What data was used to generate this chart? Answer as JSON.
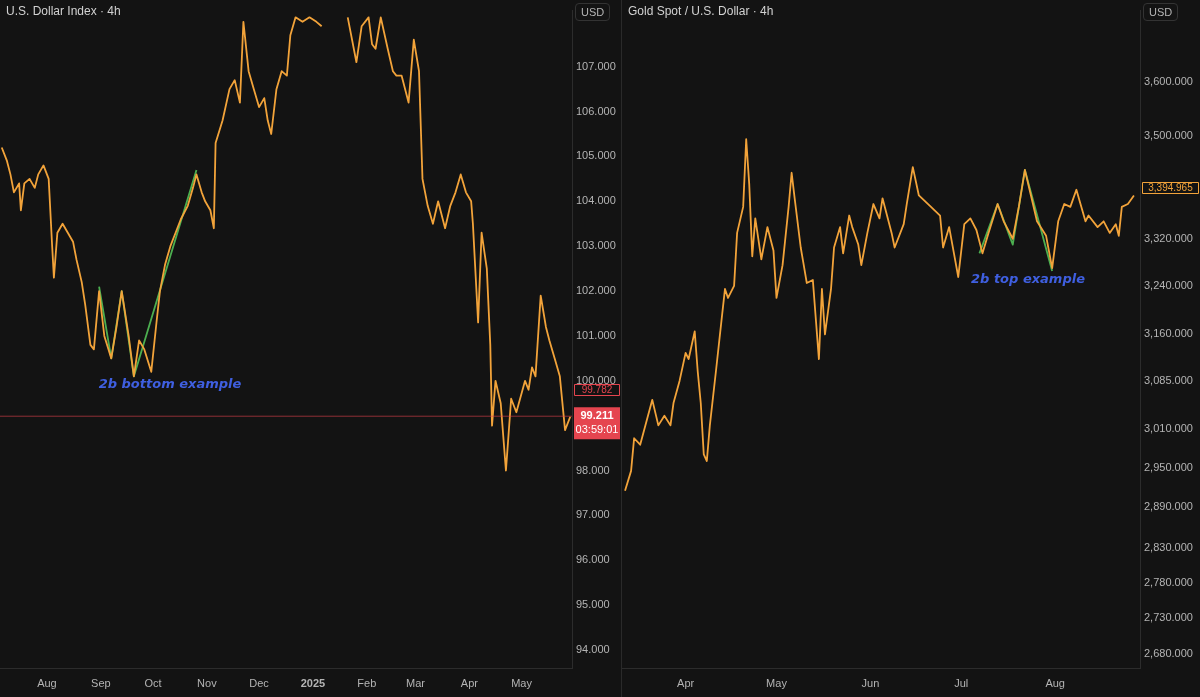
{
  "chart_data": [
    {
      "type": "line",
      "title": "U.S. Dollar Index · 4h",
      "ylabel": "USD",
      "marker": "none",
      "xlim": [
        "2024-07-05",
        "2025-05-30"
      ],
      "xticks": [
        {
          "value": "2024-08",
          "label": "Aug"
        },
        {
          "value": "2024-09",
          "label": "Sep"
        },
        {
          "value": "2024-10",
          "label": "Oct"
        },
        {
          "value": "2024-11",
          "label": "Nov"
        },
        {
          "value": "2024-12",
          "label": "Dec"
        },
        {
          "value": "2025-01",
          "label": "2025"
        },
        {
          "value": "2025-02",
          "label": "Feb"
        },
        {
          "value": "2025-03",
          "label": "Mar"
        },
        {
          "value": "2025-04",
          "label": "Apr"
        },
        {
          "value": "2025-05",
          "label": "May"
        }
      ],
      "ylim": [
        93.6,
        108.25
      ],
      "yticks": [
        {
          "value": 94,
          "label": "94.000"
        },
        {
          "value": 95,
          "label": "95.000"
        },
        {
          "value": 96,
          "label": "96.000"
        },
        {
          "value": 97,
          "label": "97.000"
        },
        {
          "value": 98,
          "label": "98.000"
        },
        {
          "value": 100,
          "label": "100.000"
        },
        {
          "value": 101,
          "label": "101.000"
        },
        {
          "value": 102,
          "label": "102.000"
        },
        {
          "value": 103,
          "label": "103.000"
        },
        {
          "value": 104,
          "label": "104.000"
        },
        {
          "value": 105,
          "label": "105.000"
        },
        {
          "value": 106,
          "label": "106.000"
        },
        {
          "value": 107,
          "label": "107.000"
        }
      ],
      "series": [
        {
          "color": "#f2a33a",
          "x": [
            "2024-07-06",
            "2024-07-09",
            "2024-07-11",
            "2024-07-13",
            "2024-07-16",
            "2024-07-17",
            "2024-07-19",
            "2024-07-22",
            "2024-07-25",
            "2024-07-27",
            "2024-07-30",
            "2024-08-02",
            "2024-08-04",
            "2024-08-05",
            "2024-08-07",
            "2024-08-10",
            "2024-08-13",
            "2024-08-16",
            "2024-08-18",
            "2024-08-21",
            "2024-08-23",
            "2024-08-26",
            "2024-08-28",
            "2024-08-31",
            "2024-09-03",
            "2024-09-07",
            "2024-09-10",
            "2024-09-13",
            "2024-09-17",
            "2024-09-20",
            "2024-09-23",
            "2024-09-26",
            "2024-09-30",
            "2024-10-03",
            "2024-10-05",
            "2024-10-08",
            "2024-10-11",
            "2024-10-14",
            "2024-10-17",
            "2024-10-21",
            "2024-10-24",
            "2024-10-26",
            "2024-10-29",
            "2024-10-31",
            "2024-11-03",
            "2024-11-05",
            "2024-11-06",
            "2024-11-10",
            "2024-11-14",
            "2024-11-17",
            "2024-11-20",
            "2024-11-22",
            "2024-11-25",
            "2024-11-28",
            "2024-12-01",
            "2024-12-04",
            "2024-12-06",
            "2024-12-08",
            "2024-12-11",
            "2024-12-14",
            "2024-12-17",
            "2024-12-19",
            "2024-12-22",
            "2024-12-26",
            "2024-12-30",
            "2025-01-03",
            "2025-01-06",
            "2025-01-13",
            "2025-01-21",
            "2025-01-26",
            "2025-01-29",
            "2025-02-02",
            "2025-02-04",
            "2025-02-06",
            "2025-02-09",
            "2025-02-13",
            "2025-02-16",
            "2025-02-18",
            "2025-02-21",
            "2025-02-25",
            "2025-02-28",
            "2025-03-03",
            "2025-03-05",
            "2025-03-08",
            "2025-03-11",
            "2025-03-14",
            "2025-03-18",
            "2025-03-21",
            "2025-03-24",
            "2025-03-27",
            "2025-03-30",
            "2025-04-02",
            "2025-04-03",
            "2025-04-06",
            "2025-04-08",
            "2025-04-11",
            "2025-04-13",
            "2025-04-14",
            "2025-04-16",
            "2025-04-19",
            "2025-04-22",
            "2025-04-25",
            "2025-04-28",
            "2025-05-03",
            "2025-05-05",
            "2025-05-07",
            "2025-05-09",
            "2025-05-12",
            "2025-05-15",
            "2025-05-17",
            "2025-05-20",
            "2025-05-23",
            "2025-05-26",
            "2025-05-29"
          ],
          "values": [
            105.2,
            104.9,
            104.6,
            104.2,
            104.4,
            103.8,
            104.4,
            104.5,
            104.3,
            104.6,
            104.8,
            104.5,
            103.0,
            102.3,
            103.3,
            103.5,
            103.3,
            103.1,
            102.7,
            102.2,
            101.7,
            100.8,
            100.7,
            102.0,
            101.0,
            100.5,
            101.2,
            102.0,
            101.0,
            100.1,
            100.9,
            100.7,
            100.2,
            101.3,
            102.0,
            102.6,
            103.0,
            103.3,
            103.6,
            103.9,
            104.3,
            104.6,
            104.2,
            104.0,
            103.8,
            103.4,
            105.3,
            105.8,
            106.5,
            106.7,
            106.2,
            108.0,
            106.9,
            106.5,
            106.1,
            106.3,
            105.8,
            105.5,
            106.5,
            106.9,
            106.8,
            107.7,
            108.1,
            108.0,
            108.1,
            108.0,
            107.9,
            null,
            108.1,
            107.1,
            107.9,
            108.1,
            107.5,
            107.4,
            108.1,
            107.4,
            106.9,
            106.8,
            106.8,
            106.2,
            107.6,
            106.9,
            104.5,
            103.9,
            103.5,
            104.0,
            103.4,
            103.9,
            104.2,
            104.6,
            104.2,
            104.0,
            103.5,
            101.3,
            103.3,
            102.5,
            100.8,
            99.0,
            100.0,
            99.5,
            98.0,
            99.6,
            99.3,
            100.0,
            99.8,
            100.3,
            100.1,
            101.9,
            101.2,
            100.9,
            100.5,
            100.1,
            98.9,
            99.2
          ]
        },
        {
          "color": "#4caf50",
          "x": [
            "2024-08-31",
            "2024-09-07",
            "2024-09-13",
            "2024-09-20",
            "2024-10-26"
          ],
          "values": [
            102.1,
            100.5,
            102.0,
            100.1,
            104.7
          ]
        }
      ],
      "ref_lines": [
        {
          "axis": "y",
          "value": 99.211,
          "label": "99.211\n03:59:01",
          "color": "#e5454f"
        }
      ],
      "annotations": [
        "2b bottom example",
        "99.782"
      ]
    },
    {
      "type": "line",
      "title": "Gold Spot / U.S. Dollar · 4h",
      "ylabel": "USD",
      "marker": "none",
      "log": "y",
      "xlim": [
        "2025-03-11",
        "2025-08-29"
      ],
      "xticks": [
        {
          "value": "2025-04",
          "label": "Apr"
        },
        {
          "value": "2025-05",
          "label": "May"
        },
        {
          "value": "2025-06",
          "label": "Jun"
        },
        {
          "value": "2025-07",
          "label": "Jul"
        },
        {
          "value": "2025-08",
          "label": "Aug"
        }
      ],
      "ylim": [
        2660,
        3735
      ],
      "yticks": [
        {
          "value": 2680,
          "label": "2,680.000"
        },
        {
          "value": 2730,
          "label": "2,730.000"
        },
        {
          "value": 2780,
          "label": "2,780.000"
        },
        {
          "value": 2830,
          "label": "2,830.000"
        },
        {
          "value": 2890,
          "label": "2,890.000"
        },
        {
          "value": 2950,
          "label": "2,950.000"
        },
        {
          "value": 3010,
          "label": "3,010.000"
        },
        {
          "value": 3085,
          "label": "3,085.000"
        },
        {
          "value": 3160,
          "label": "3,160.000"
        },
        {
          "value": 3240,
          "label": "3,240.000"
        },
        {
          "value": 3320,
          "label": "3,320.000"
        },
        {
          "value": 3500,
          "label": "3,500.000"
        },
        {
          "value": 3600,
          "label": "3,600.000"
        }
      ],
      "series": [
        {
          "color": "#f2a33a",
          "x": [
            "2025-03-12",
            "2025-03-14",
            "2025-03-15",
            "2025-03-17",
            "2025-03-19",
            "2025-03-21",
            "2025-03-23",
            "2025-03-25",
            "2025-03-27",
            "2025-03-28",
            "2025-03-30",
            "2025-04-01",
            "2025-04-02",
            "2025-04-04",
            "2025-04-05",
            "2025-04-06",
            "2025-04-07",
            "2025-04-08",
            "2025-04-09",
            "2025-04-11",
            "2025-04-13",
            "2025-04-14",
            "2025-04-15",
            "2025-04-17",
            "2025-04-18",
            "2025-04-20",
            "2025-04-21",
            "2025-04-22",
            "2025-04-23",
            "2025-04-24",
            "2025-04-26",
            "2025-04-28",
            "2025-04-30",
            "2025-05-01",
            "2025-05-03",
            "2025-05-05",
            "2025-05-06",
            "2025-05-07",
            "2025-05-09",
            "2025-05-10",
            "2025-05-11",
            "2025-05-13",
            "2025-05-15",
            "2025-05-16",
            "2025-05-17",
            "2025-05-19",
            "2025-05-20",
            "2025-05-22",
            "2025-05-23",
            "2025-05-25",
            "2025-05-26",
            "2025-05-28",
            "2025-05-29",
            "2025-05-31",
            "2025-06-02",
            "2025-06-04",
            "2025-06-05",
            "2025-06-08",
            "2025-06-09",
            "2025-06-12",
            "2025-06-13",
            "2025-06-15",
            "2025-06-17",
            "2025-06-21",
            "2025-06-24",
            "2025-06-25",
            "2025-06-27",
            "2025-06-30",
            "2025-07-02",
            "2025-07-04",
            "2025-07-06",
            "2025-07-08",
            "2025-07-10",
            "2025-07-13",
            "2025-07-15",
            "2025-07-18",
            "2025-07-20",
            "2025-07-22",
            "2025-07-24",
            "2025-07-26",
            "2025-07-29",
            "2025-07-31",
            "2025-08-02",
            "2025-08-04",
            "2025-08-06",
            "2025-08-08",
            "2025-08-11",
            "2025-08-12",
            "2025-08-15",
            "2025-08-17",
            "2025-08-19",
            "2025-08-21",
            "2025-08-22",
            "2025-08-23",
            "2025-08-25",
            "2025-08-27"
          ],
          "values": [
            2915,
            2945,
            2995,
            2985,
            3020,
            3055,
            3015,
            3030,
            3015,
            3050,
            3085,
            3130,
            3120,
            3165,
            3100,
            3050,
            2970,
            2960,
            3015,
            3100,
            3190,
            3235,
            3220,
            3240,
            3330,
            3375,
            3495,
            3415,
            3290,
            3355,
            3285,
            3340,
            3300,
            3220,
            3275,
            3375,
            3435,
            3390,
            3305,
            3275,
            3245,
            3250,
            3120,
            3235,
            3160,
            3235,
            3305,
            3340,
            3295,
            3360,
            3340,
            3310,
            3275,
            3330,
            3380,
            3355,
            3390,
            3330,
            3305,
            3345,
            3380,
            3445,
            3395,
            3375,
            3360,
            3305,
            3340,
            3255,
            3345,
            3355,
            3335,
            3295,
            3330,
            3380,
            3350,
            3320,
            3375,
            3440,
            3395,
            3350,
            3325,
            3270,
            3350,
            3380,
            3375,
            3405,
            3350,
            3360,
            3340,
            3350,
            3330,
            3345,
            3325,
            3375,
            3380,
            3395
          ]
        },
        {
          "color": "#4caf50",
          "x": [
            "2025-07-07",
            "2025-07-13",
            "2025-07-18",
            "2025-07-22",
            "2025-07-31"
          ],
          "values": [
            3295,
            3380,
            3310,
            3440,
            3265
          ]
        }
      ],
      "annotations": [
        "2b top example",
        "3,394.965"
      ]
    }
  ]
}
